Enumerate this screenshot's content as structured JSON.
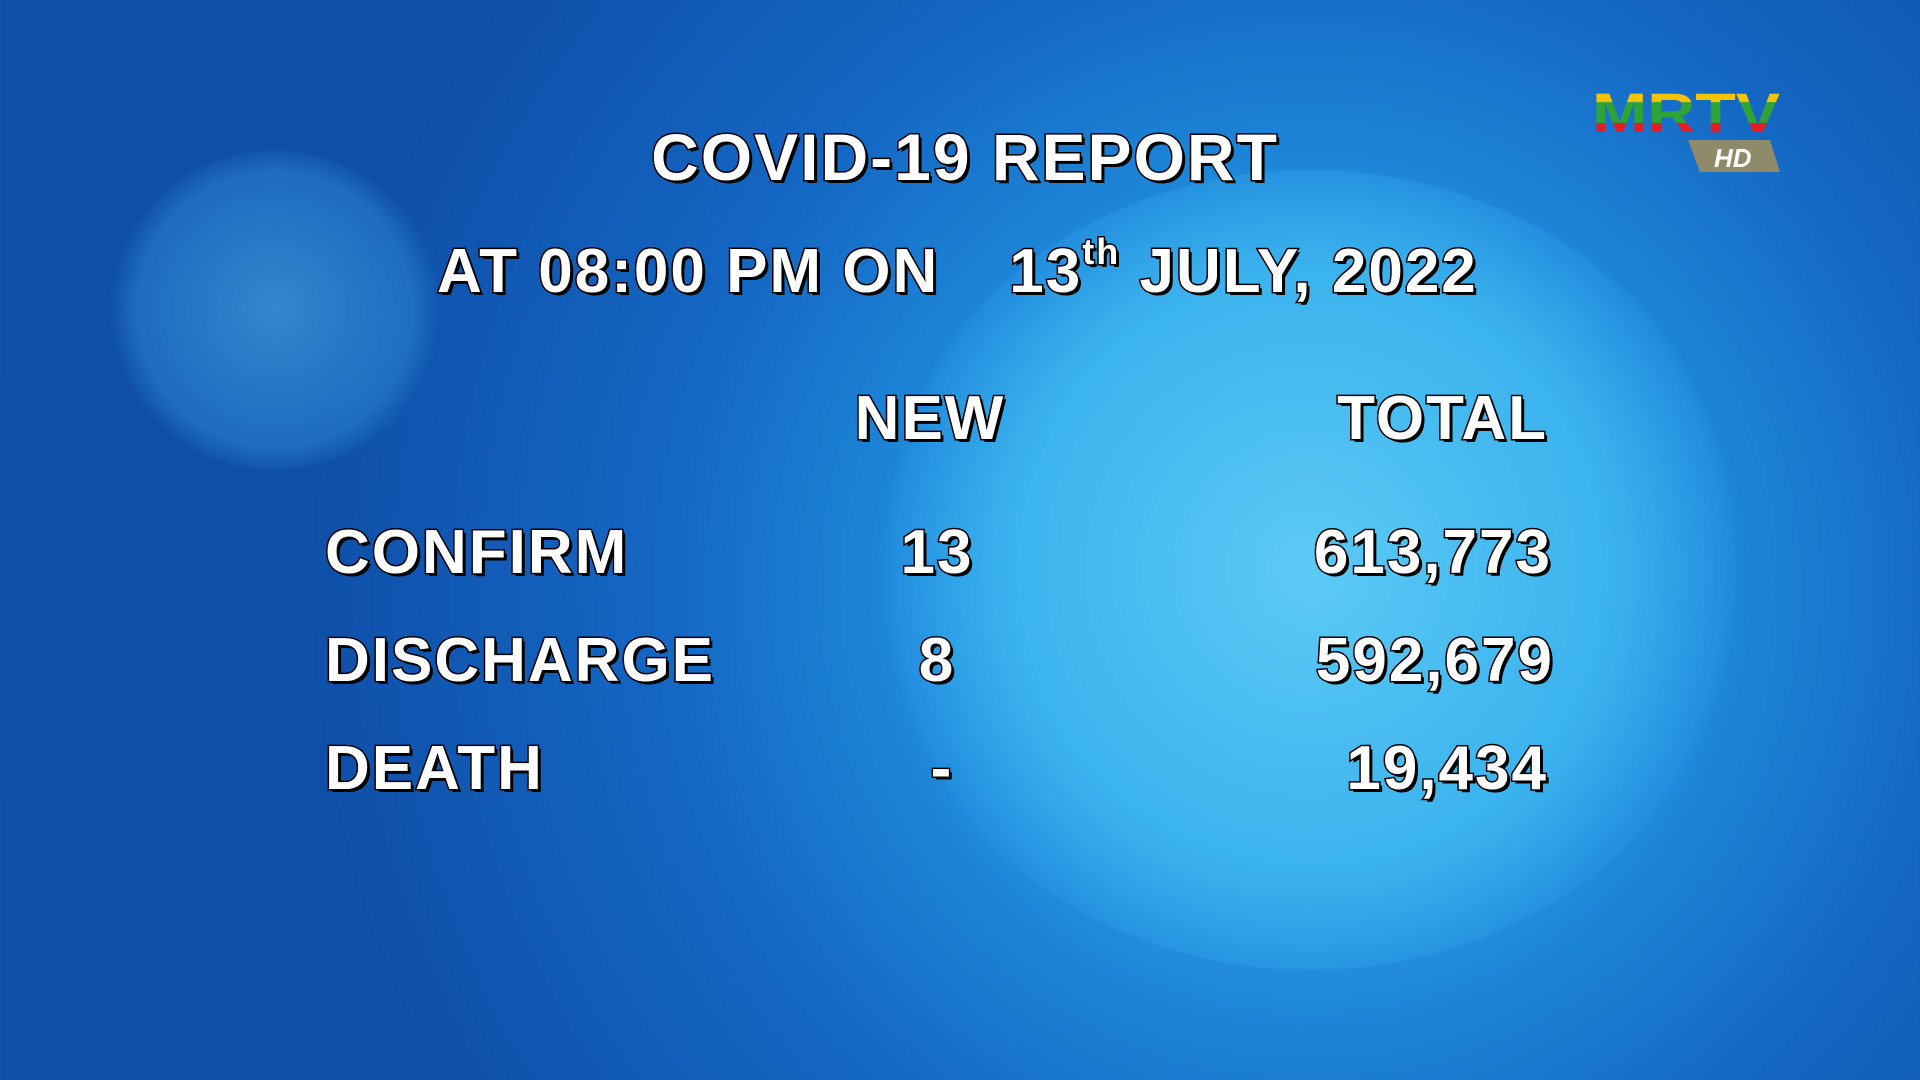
{
  "title": "COVID-19 REPORT",
  "subtitle": {
    "prefix": "AT 08:00 PM ON",
    "day": "13",
    "suffix": "th",
    "rest": "JULY, 2022"
  },
  "columns": {
    "new": "NEW",
    "total": "TOTAL"
  },
  "rows": [
    {
      "label": "CONFIRM",
      "new": "13",
      "total": "613,773"
    },
    {
      "label": "DISCHARGE",
      "new": "8",
      "total": "592,679"
    },
    {
      "label": "DEATH",
      "new": "-",
      "total": "19,434"
    }
  ],
  "logo": {
    "text": "MRTV",
    "badge": "HD"
  },
  "colors": {
    "background": "#1d86d8",
    "text": "#ffffff",
    "logo_yellow": "#f5c400",
    "logo_green": "#2fa336",
    "logo_red": "#e21d26",
    "badge": "#8f8a6a"
  }
}
